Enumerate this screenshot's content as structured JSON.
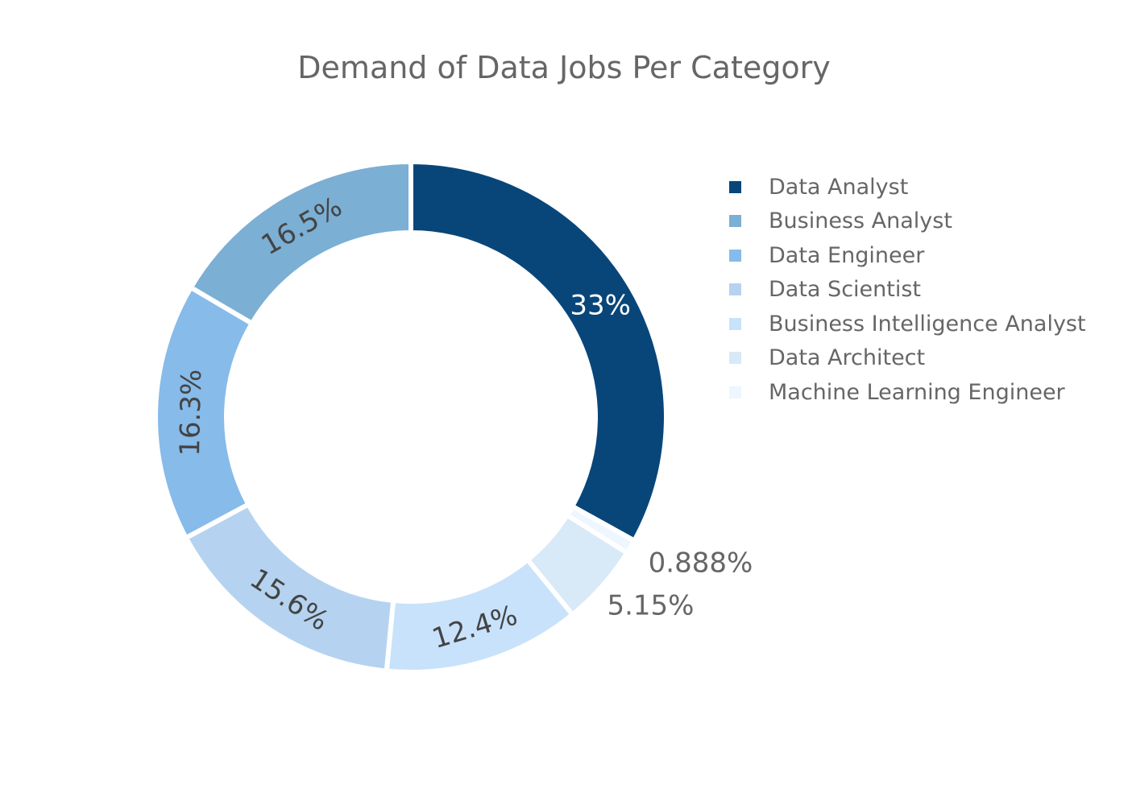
{
  "chart_data": {
    "type": "pie",
    "hole": true,
    "title": "Demand of Data Jobs Per Category",
    "legend_position": "right",
    "slices": [
      {
        "name": "Data Analyst",
        "value": 33.0,
        "label": "33%",
        "color": "#08467a"
      },
      {
        "name": "Business Analyst",
        "value": 16.5,
        "label": "16.5%",
        "color": "#7bafd4"
      },
      {
        "name": "Data Engineer",
        "value": 16.3,
        "label": "16.3%",
        "color": "#86bbea"
      },
      {
        "name": "Data Scientist",
        "value": 15.6,
        "label": "15.6%",
        "color": "#b5d3f0"
      },
      {
        "name": "Business Intelligence Analyst",
        "value": 12.4,
        "label": "12.4%",
        "color": "#c8e2fb"
      },
      {
        "name": "Data Architect",
        "value": 5.15,
        "label": "5.15%",
        "color": "#d8e9f8"
      },
      {
        "name": "Machine Learning Engineer",
        "value": 0.888,
        "label": "0.888%",
        "color": "#eef6ff"
      }
    ],
    "slice_order": [
      "Data Analyst",
      "Machine Learning Engineer",
      "Data Architect",
      "Business Intelligence Analyst",
      "Data Scientist",
      "Data Engineer",
      "Business Analyst"
    ]
  }
}
